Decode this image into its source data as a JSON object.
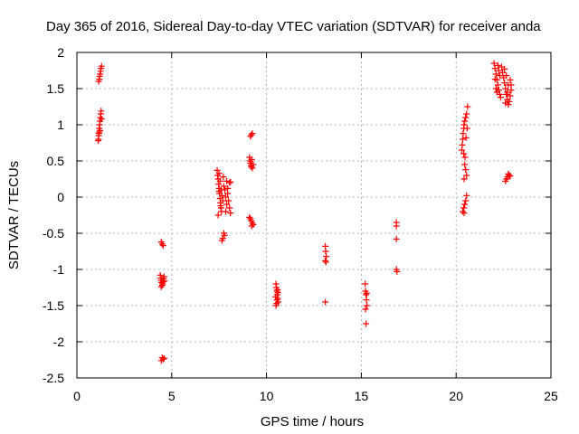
{
  "colors": {
    "series": "#ff0000",
    "axis": "#000000",
    "grid": "#a0a0a0",
    "background": "#ffffff"
  },
  "chart_data": {
    "type": "scatter",
    "title": "Day 365 of 2016, Sidereal Day-to-day VTEC variation (SDTVAR) for receiver anda",
    "xlabel": "GPS time / hours",
    "ylabel": "SDTVAR / TECUs",
    "xlim": [
      0,
      25
    ],
    "ylim": [
      -2.5,
      2
    ],
    "xticks": [
      0,
      5,
      10,
      15,
      20,
      25
    ],
    "yticks": [
      -2.5,
      -2,
      -1.5,
      -1,
      -0.5,
      0,
      0.5,
      1,
      1.5,
      2
    ],
    "xtick_labels": [
      "0",
      "5",
      "10",
      "15",
      "20",
      "25"
    ],
    "ytick_labels": [
      "-2.5",
      "-2",
      "-1.5",
      "-1",
      "-0.5",
      "0",
      "0.5",
      "1",
      "1.5",
      "2"
    ],
    "grid": true,
    "marker": "+",
    "series": [
      {
        "name": "SDTVAR",
        "color": "#ff0000",
        "points": [
          [
            1.15,
            1.6
          ],
          [
            1.18,
            1.63
          ],
          [
            1.2,
            1.67
          ],
          [
            1.22,
            1.7
          ],
          [
            1.25,
            1.74
          ],
          [
            1.27,
            1.78
          ],
          [
            1.3,
            1.81
          ],
          [
            1.12,
            0.78
          ],
          [
            1.14,
            0.8
          ],
          [
            1.15,
            0.85
          ],
          [
            1.17,
            0.9
          ],
          [
            1.18,
            0.95
          ],
          [
            1.2,
            1.0
          ],
          [
            1.22,
            1.05
          ],
          [
            1.24,
            1.1
          ],
          [
            1.26,
            1.15
          ],
          [
            1.28,
            1.19
          ],
          [
            1.3,
            1.08
          ],
          [
            1.22,
            0.92
          ],
          [
            1.16,
            0.88
          ],
          [
            4.45,
            -0.62
          ],
          [
            4.5,
            -0.65
          ],
          [
            4.55,
            -0.67
          ],
          [
            4.4,
            -1.08
          ],
          [
            4.42,
            -1.12
          ],
          [
            4.45,
            -1.15
          ],
          [
            4.47,
            -1.18
          ],
          [
            4.5,
            -1.22
          ],
          [
            4.52,
            -1.2
          ],
          [
            4.55,
            -1.17
          ],
          [
            4.57,
            -1.13
          ],
          [
            4.6,
            -1.1
          ],
          [
            4.62,
            -1.16
          ],
          [
            4.44,
            -1.24
          ],
          [
            4.5,
            -2.22
          ],
          [
            4.55,
            -2.24
          ],
          [
            4.6,
            -2.23
          ],
          [
            4.45,
            -2.26
          ],
          [
            7.4,
            0.37
          ],
          [
            7.42,
            0.3
          ],
          [
            7.45,
            0.25
          ],
          [
            7.47,
            0.18
          ],
          [
            7.5,
            0.12
          ],
          [
            7.52,
            0.05
          ],
          [
            7.55,
            -0.02
          ],
          [
            7.57,
            -0.08
          ],
          [
            7.6,
            -0.15
          ],
          [
            7.62,
            -0.2
          ],
          [
            7.45,
            -0.25
          ],
          [
            7.5,
            0.33
          ],
          [
            7.55,
            0.22
          ],
          [
            7.6,
            0.1
          ],
          [
            7.65,
            0.02
          ],
          [
            7.7,
            -0.05
          ],
          [
            7.72,
            0.28
          ],
          [
            7.75,
            0.15
          ],
          [
            7.5,
            0.08
          ],
          [
            7.58,
            -0.12
          ],
          [
            7.75,
            -0.5
          ],
          [
            7.78,
            -0.53
          ],
          [
            7.7,
            -0.57
          ],
          [
            7.65,
            -0.6
          ],
          [
            7.8,
            0.1
          ],
          [
            7.85,
            0.0
          ],
          [
            7.9,
            -0.1
          ],
          [
            7.95,
            0.05
          ],
          [
            8.0,
            -0.05
          ],
          [
            8.05,
            -0.15
          ],
          [
            8.1,
            -0.22
          ],
          [
            7.85,
            -0.2
          ],
          [
            7.95,
            0.12
          ],
          [
            8.05,
            0.2
          ],
          [
            8.1,
            0.21
          ],
          [
            7.9,
            0.22
          ],
          [
            9.15,
            0.84
          ],
          [
            9.2,
            0.86
          ],
          [
            9.25,
            0.88
          ],
          [
            9.1,
            0.55
          ],
          [
            9.12,
            0.5
          ],
          [
            9.15,
            0.47
          ],
          [
            9.18,
            0.44
          ],
          [
            9.2,
            0.42
          ],
          [
            9.25,
            0.4
          ],
          [
            9.3,
            0.45
          ],
          [
            9.22,
            0.52
          ],
          [
            9.1,
            -0.28
          ],
          [
            9.15,
            -0.3
          ],
          [
            9.2,
            -0.33
          ],
          [
            9.25,
            -0.36
          ],
          [
            9.3,
            -0.38
          ],
          [
            9.22,
            -0.4
          ],
          [
            10.5,
            -1.2
          ],
          [
            10.52,
            -1.25
          ],
          [
            10.55,
            -1.3
          ],
          [
            10.57,
            -1.35
          ],
          [
            10.6,
            -1.4
          ],
          [
            10.62,
            -1.45
          ],
          [
            10.5,
            -1.5
          ],
          [
            10.55,
            -1.42
          ],
          [
            10.6,
            -1.32
          ],
          [
            10.48,
            -1.38
          ],
          [
            10.53,
            -1.47
          ],
          [
            10.58,
            -1.28
          ],
          [
            13.1,
            -0.68
          ],
          [
            13.12,
            -0.75
          ],
          [
            13.15,
            -0.82
          ],
          [
            13.1,
            -0.88
          ],
          [
            13.13,
            -0.9
          ],
          [
            13.1,
            -1.45
          ],
          [
            15.2,
            -1.2
          ],
          [
            15.22,
            -1.3
          ],
          [
            15.25,
            -1.35
          ],
          [
            15.27,
            -1.42
          ],
          [
            15.3,
            -1.5
          ],
          [
            15.22,
            -1.55
          ],
          [
            15.25,
            -1.75
          ],
          [
            15.28,
            -1.33
          ],
          [
            16.85,
            -0.35
          ],
          [
            16.85,
            -0.4
          ],
          [
            16.85,
            -0.58
          ],
          [
            16.85,
            -1.0
          ],
          [
            16.88,
            -1.03
          ],
          [
            20.3,
            0.65
          ],
          [
            20.32,
            0.72
          ],
          [
            20.35,
            0.8
          ],
          [
            20.37,
            0.88
          ],
          [
            20.4,
            0.95
          ],
          [
            20.42,
            1.0
          ],
          [
            20.45,
            1.05
          ],
          [
            20.5,
            1.1
          ],
          [
            20.55,
            1.15
          ],
          [
            20.6,
            1.25
          ],
          [
            20.4,
            0.6
          ],
          [
            20.45,
            0.45
          ],
          [
            20.5,
            0.38
          ],
          [
            20.55,
            0.3
          ],
          [
            20.42,
            0.25
          ],
          [
            20.47,
            0.55
          ],
          [
            20.52,
            0.82
          ],
          [
            20.58,
            0.95
          ],
          [
            20.35,
            -0.2
          ],
          [
            20.4,
            -0.15
          ],
          [
            20.45,
            -0.1
          ],
          [
            20.5,
            -0.05
          ],
          [
            20.55,
            0.02
          ],
          [
            20.42,
            -0.22
          ],
          [
            22.0,
            1.85
          ],
          [
            22.05,
            1.78
          ],
          [
            22.1,
            1.7
          ],
          [
            22.15,
            1.62
          ],
          [
            22.2,
            1.55
          ],
          [
            22.25,
            1.48
          ],
          [
            22.3,
            1.42
          ],
          [
            22.35,
            1.38
          ],
          [
            22.05,
            1.63
          ],
          [
            22.1,
            1.5
          ],
          [
            22.15,
            1.45
          ],
          [
            22.2,
            1.82
          ],
          [
            22.25,
            1.75
          ],
          [
            22.3,
            1.68
          ],
          [
            22.4,
            1.8
          ],
          [
            22.45,
            1.72
          ],
          [
            22.5,
            1.65
          ],
          [
            22.55,
            1.58
          ],
          [
            22.6,
            1.5
          ],
          [
            22.65,
            1.42
          ],
          [
            22.7,
            1.35
          ],
          [
            22.75,
            1.28
          ],
          [
            22.8,
            1.32
          ],
          [
            22.85,
            1.4
          ],
          [
            22.9,
            1.48
          ],
          [
            22.55,
            1.77
          ],
          [
            22.65,
            1.68
          ],
          [
            22.75,
            1.55
          ],
          [
            22.85,
            1.62
          ],
          [
            22.9,
            1.55
          ],
          [
            22.6,
            1.3
          ],
          [
            22.7,
            1.45
          ],
          [
            22.6,
            0.22
          ],
          [
            22.65,
            0.25
          ],
          [
            22.7,
            0.28
          ],
          [
            22.75,
            0.32
          ],
          [
            22.8,
            0.3
          ],
          [
            22.85,
            0.29
          ]
        ]
      }
    ]
  }
}
